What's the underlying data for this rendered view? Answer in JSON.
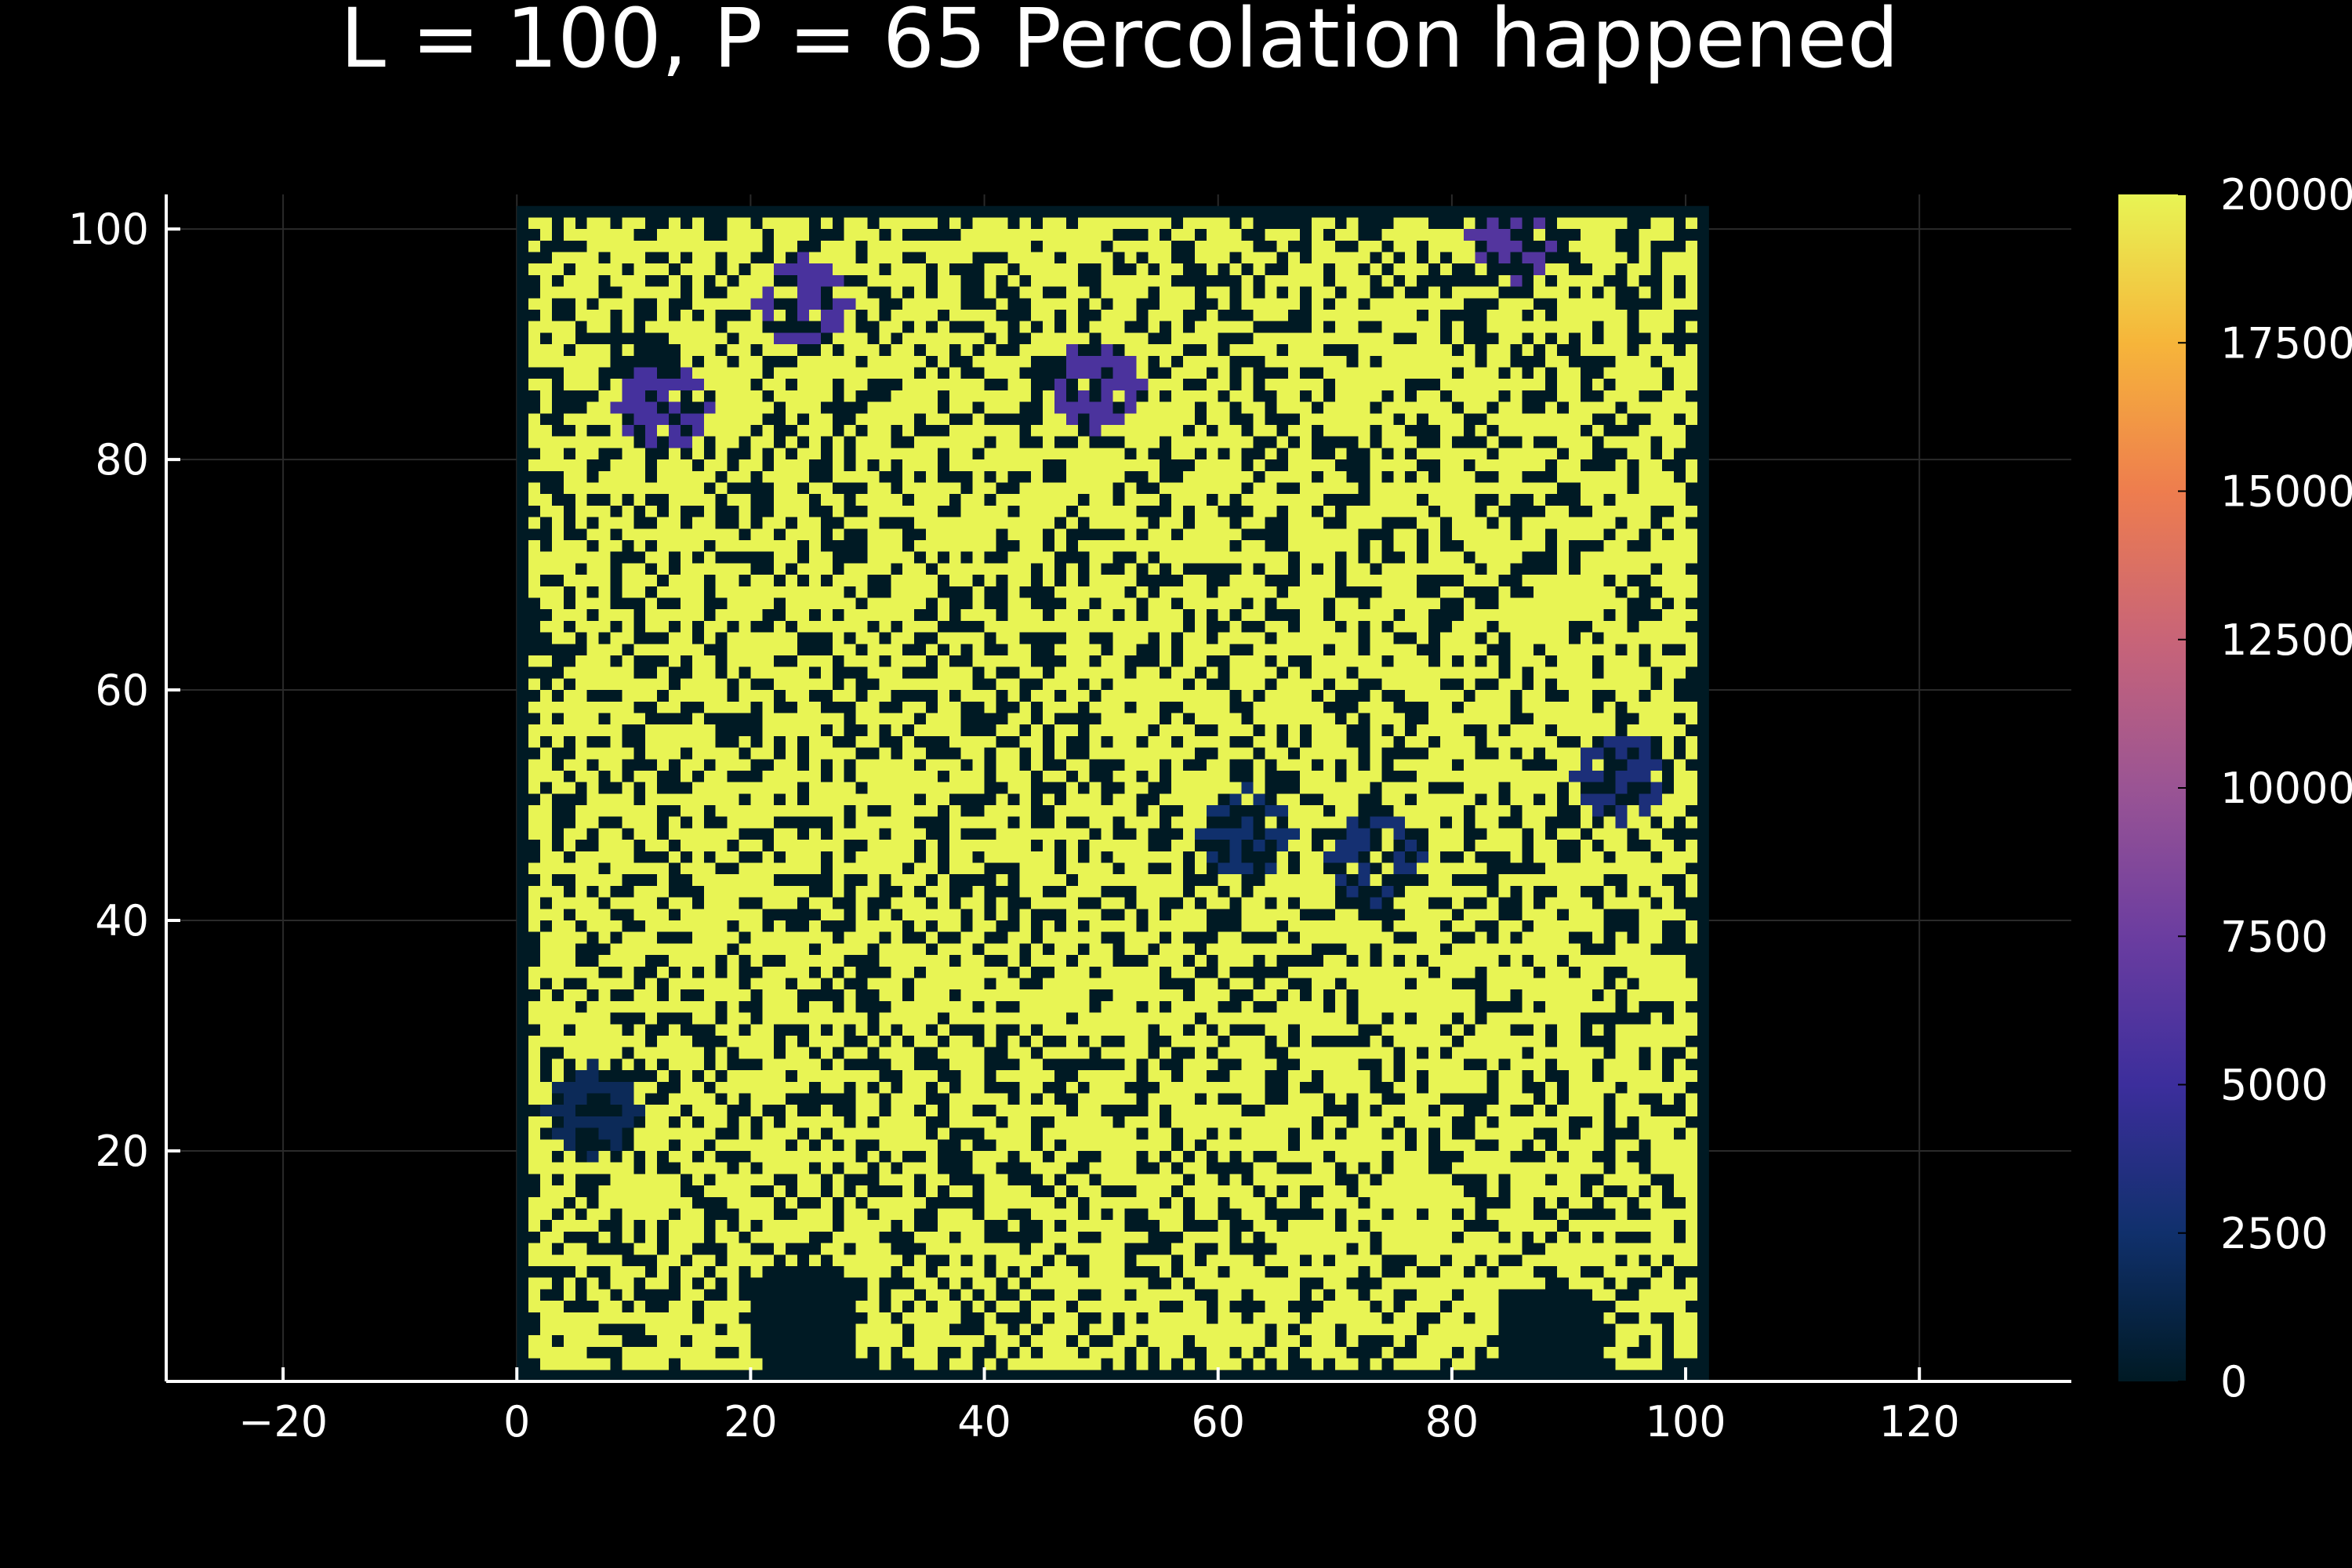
{
  "chart_data": {
    "type": "heatmap",
    "title": "L = 100, P = 65 Percolation happened",
    "xlabel": "",
    "ylabel": "",
    "xlim": [
      -30,
      133
    ],
    "ylim": [
      0,
      103
    ],
    "x_ticks": [
      -20,
      0,
      20,
      40,
      60,
      80,
      100,
      120
    ],
    "x_tick_labels": [
      "−20",
      "0",
      "20",
      "40",
      "60",
      "80",
      "100",
      "120"
    ],
    "y_ticks": [
      20,
      40,
      60,
      80,
      100
    ],
    "y_tick_labels": [
      "20",
      "40",
      "60",
      "80",
      "100"
    ],
    "grid": true,
    "lattice": {
      "L": 100,
      "P": 65,
      "occupied_fraction": 0.65,
      "percolated": true
    },
    "grid_extent": {
      "x": [
        0,
        102
      ],
      "y": [
        0,
        102
      ]
    },
    "colorbar": {
      "min": 0,
      "max": 20000,
      "ticks": [
        0,
        2500,
        5000,
        7500,
        10000,
        12500,
        15000,
        17500,
        20000
      ],
      "tick_labels": [
        "0",
        "2500",
        "5000",
        "7500",
        "10000",
        "12500",
        "15000",
        "17500",
        "20000"
      ],
      "colormap": [
        "#001a24",
        "#10306c",
        "#3c2e9c",
        "#6b3da0",
        "#9a5494",
        "#c86478",
        "#ee7d4e",
        "#f6b53a",
        "#e8f454"
      ]
    },
    "values_summary": {
      "percolating_cluster_value": 20000,
      "empty_value": 0,
      "other_clusters": [
        {
          "x": 62,
          "y": 47,
          "value": 2500
        },
        {
          "x": 73,
          "y": 45,
          "value": 2800
        },
        {
          "x": 94,
          "y": 52,
          "value": 3200
        },
        {
          "x": 12,
          "y": 84,
          "value": 5500
        },
        {
          "x": 49,
          "y": 86,
          "value": 5800
        },
        {
          "x": 85,
          "y": 99,
          "value": 6200
        },
        {
          "x": 24,
          "y": 93,
          "value": 5700
        },
        {
          "x": 6,
          "y": 23,
          "value": 1800
        },
        {
          "x": 24,
          "y": 5,
          "value": 0
        },
        {
          "x": 88,
          "y": 3,
          "value": 0
        }
      ]
    }
  }
}
